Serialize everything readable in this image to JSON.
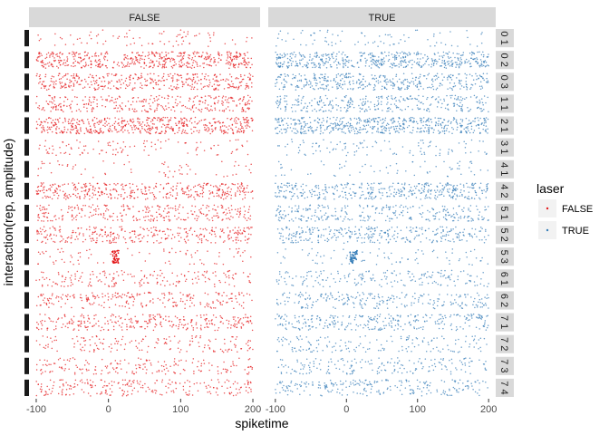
{
  "chart_data": {
    "type": "scatter",
    "title": "",
    "xlabel": "spiketime",
    "ylabel": "interaction(rep, amplitude)",
    "xlim": [
      -110,
      210
    ],
    "x_ticks": [
      -100,
      0,
      100,
      200
    ],
    "x_tick_labels": [
      "-100",
      "0",
      "100",
      "200"
    ],
    "facet_columns": [
      "FALSE",
      "TRUE"
    ],
    "rows": [
      "0 1",
      "0 2",
      "0 3",
      "1 1",
      "2 1",
      "3 1",
      "4 1",
      "4 2",
      "5 1",
      "5 2",
      "5 3",
      "6 1",
      "6 2",
      "7 1",
      "7 2",
      "7 3",
      "7 4"
    ],
    "row_density": [
      0.15,
      1.0,
      0.75,
      0.6,
      1.0,
      0.2,
      0.12,
      0.75,
      0.55,
      0.6,
      0.15,
      0.35,
      0.45,
      0.55,
      0.3,
      0.35,
      0.45
    ],
    "x_range": [
      -100,
      200
    ],
    "clusters": [
      {
        "row": "0 2",
        "x_center": 10,
        "note": "gap"
      },
      {
        "row": "2 1",
        "x_center": 35,
        "note": "dip"
      },
      {
        "row": "5 3",
        "x_center": 10,
        "note": "burst"
      },
      {
        "row": "5 1",
        "x_center": 10,
        "note": "gap"
      }
    ],
    "legend": {
      "title": "laser",
      "position": "right",
      "entries": [
        {
          "label": "FALSE",
          "color": "#e41a1c"
        },
        {
          "label": "TRUE",
          "color": "#377eb8"
        }
      ]
    },
    "grid": false,
    "colors": {
      "FALSE": "#e41a1c",
      "TRUE": "#377eb8",
      "strip_bg": "#d9d9d9",
      "left_tab": "#1a1a1a"
    }
  }
}
